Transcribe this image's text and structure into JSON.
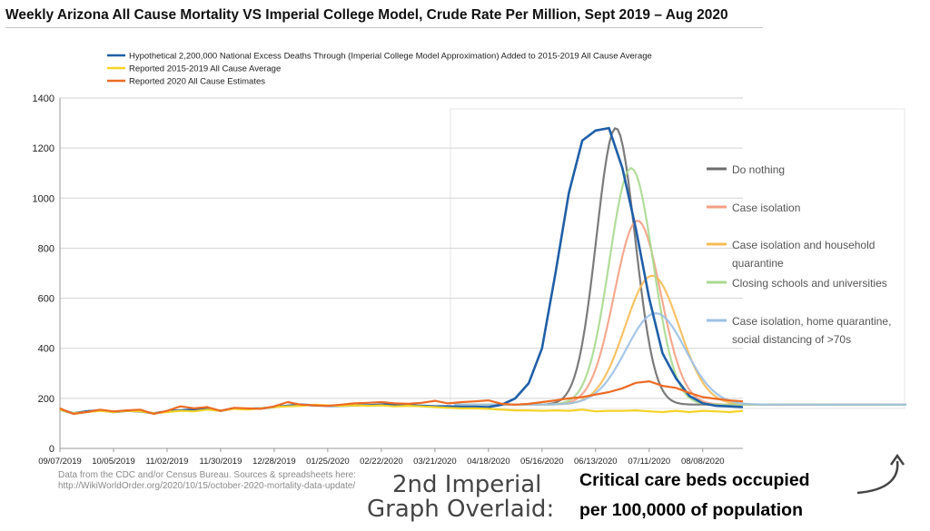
{
  "title": "Weekly Arizona All Cause Mortality VS Imperial College Model, Crude Rate Per Million, Sept 2019 – Aug 2020",
  "source_line1": "Data from the CDC and/or Census Bureau. Sources & spreadsheets here:",
  "source_line2": "http://WikiWorldOrder.org/2020/10/15/october-2020-mortality-data-update/",
  "overlay_line1": "2nd Imperial",
  "overlay_line2": "Graph Overlaid:",
  "beds_line1": "Critical care beds occupied",
  "beds_line2": "per 100,0000 of population",
  "chart_data": {
    "type": "line",
    "title": "Weekly Arizona All Cause Mortality VS Imperial College Model, Crude Rate Per Million, Sept 2019 – Aug 2020",
    "ylim": [
      0,
      1400
    ],
    "yticks": [
      0,
      200,
      400,
      600,
      800,
      1000,
      1200,
      1400
    ],
    "x_tick_labels": [
      "09/07/2019",
      "10/05/2019",
      "11/02/2019",
      "11/30/2019",
      "12/28/2019",
      "01/25/2020",
      "02/22/2020",
      "03/21/2020",
      "04/18/2020",
      "05/16/2020",
      "06/13/2020",
      "07/11/2020",
      "08/08/2020"
    ],
    "grid": true,
    "legend_position": "top",
    "series": [
      {
        "name": "Hypothetical 2,200,000 National Excess Deaths Through (Imperial College Model Approximation) Added to 2015-2019 All Cause Average",
        "color": "#1f5fa8",
        "values": [
          155,
          140,
          148,
          152,
          145,
          150,
          148,
          140,
          148,
          152,
          155,
          158,
          150,
          160,
          158,
          160,
          165,
          170,
          175,
          172,
          170,
          170,
          172,
          172,
          175,
          175,
          172,
          170,
          168,
          168,
          166,
          166,
          165,
          175,
          200,
          260,
          400,
          700,
          1020,
          1230,
          1270,
          1280,
          1120,
          880,
          600,
          380,
          280,
          210,
          180,
          170,
          168,
          165
        ]
      },
      {
        "name": "Reported 2015-2019 All Cause Average",
        "color": "#f5d327",
        "values": [
          155,
          140,
          145,
          150,
          145,
          150,
          148,
          140,
          145,
          150,
          148,
          155,
          150,
          158,
          155,
          160,
          165,
          168,
          170,
          175,
          172,
          170,
          172,
          170,
          172,
          168,
          170,
          168,
          165,
          162,
          160,
          160,
          158,
          155,
          152,
          152,
          150,
          152,
          150,
          155,
          148,
          150,
          150,
          152,
          148,
          145,
          150,
          145,
          150,
          148,
          145,
          150
        ]
      },
      {
        "name": "Reported 2020 All Cause Estimates",
        "color": "#ec6b25",
        "values": [
          160,
          138,
          145,
          155,
          148,
          152,
          155,
          138,
          150,
          168,
          160,
          165,
          150,
          162,
          160,
          158,
          168,
          185,
          175,
          172,
          170,
          175,
          180,
          182,
          185,
          180,
          178,
          182,
          190,
          180,
          185,
          188,
          192,
          178,
          175,
          178,
          185,
          192,
          200,
          205,
          215,
          225,
          240,
          262,
          268,
          250,
          242,
          222,
          205,
          198,
          192,
          188
        ]
      }
    ],
    "overlay": {
      "legend": [
        "Do nothing",
        "Case isolation",
        "Case isolation and household quarantine",
        "Closing schools and universities",
        "Case isolation, home quarantine, social distancing of >70s"
      ],
      "colors": [
        "#6d6d6d",
        "#f4a084",
        "#f5bd55",
        "#a8d98f",
        "#9cc0e6"
      ],
      "peaks": [
        1280,
        910,
        690,
        1120,
        540
      ]
    }
  }
}
